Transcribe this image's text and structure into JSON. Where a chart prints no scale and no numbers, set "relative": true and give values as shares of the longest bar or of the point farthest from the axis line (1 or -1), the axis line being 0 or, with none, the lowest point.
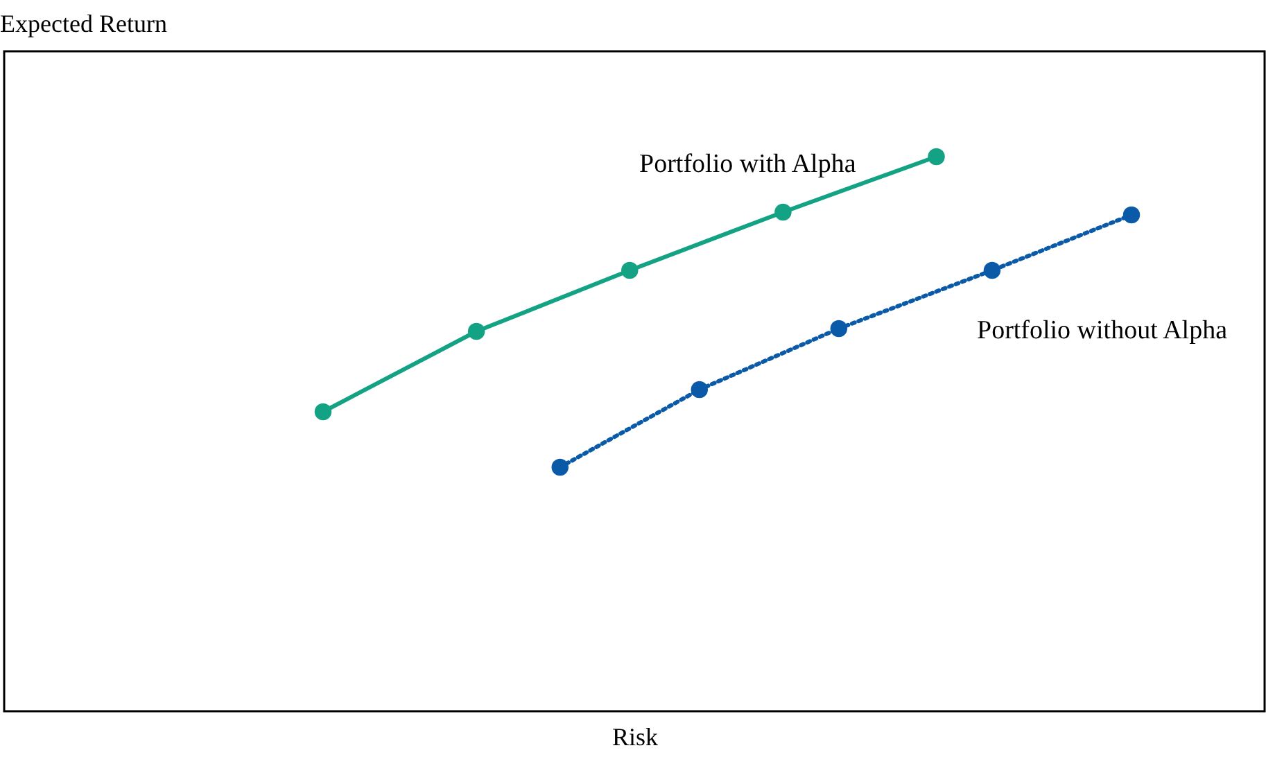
{
  "chart_data": {
    "type": "line",
    "relative": true,
    "xlabel": "Risk",
    "annotations": [
      "Expected Return"
    ],
    "tick_labels": false,
    "grid": false,
    "marker": "circle",
    "categories": [
      null,
      null,
      null,
      null,
      null,
      null,
      null,
      null,
      null,
      null,
      null,
      null,
      null,
      null,
      null,
      null,
      null,
      null,
      null,
      null,
      null,
      null,
      null,
      null,
      null,
      null,
      null,
      null,
      null,
      null,
      null,
      null,
      null,
      null,
      null,
      null,
      null,
      null,
      null,
      null,
      null,
      null,
      null,
      null,
      null,
      null,
      null,
      null,
      null,
      null,
      null,
      null,
      null,
      null,
      null,
      null,
      null,
      null,
      null
    ],
    "series": [
      {
        "name": "Portfolio with Alpha",
        "color": "#13a384",
        "line_style": "solid",
        "values": [
          0.54,
          null,
          null,
          null,
          null,
          null,
          null,
          null,
          null,
          null,
          null,
          0.685,
          null,
          null,
          null,
          null,
          null,
          null,
          null,
          null,
          null,
          null,
          0.795,
          null,
          null,
          null,
          null,
          null,
          null,
          null,
          null,
          null,
          null,
          0.9,
          null,
          null,
          null,
          null,
          null,
          null,
          null,
          null,
          null,
          null,
          1.0,
          null,
          null,
          null,
          null,
          null,
          null,
          null,
          null,
          null,
          null,
          null,
          null,
          null,
          null
        ]
      },
      {
        "name": "Portfolio without Alpha",
        "color": "#0b5aa8",
        "line_style": "dotted",
        "values": [
          null,
          null,
          null,
          null,
          null,
          null,
          null,
          null,
          null,
          null,
          null,
          null,
          null,
          null,
          null,
          null,
          null,
          0.44,
          null,
          null,
          null,
          null,
          null,
          null,
          null,
          null,
          null,
          0.58,
          null,
          null,
          null,
          null,
          null,
          null,
          null,
          null,
          null,
          0.69,
          null,
          null,
          null,
          null,
          null,
          null,
          null,
          null,
          null,
          null,
          0.795,
          null,
          null,
          null,
          null,
          null,
          null,
          null,
          null,
          null,
          0.895
        ]
      }
    ]
  }
}
